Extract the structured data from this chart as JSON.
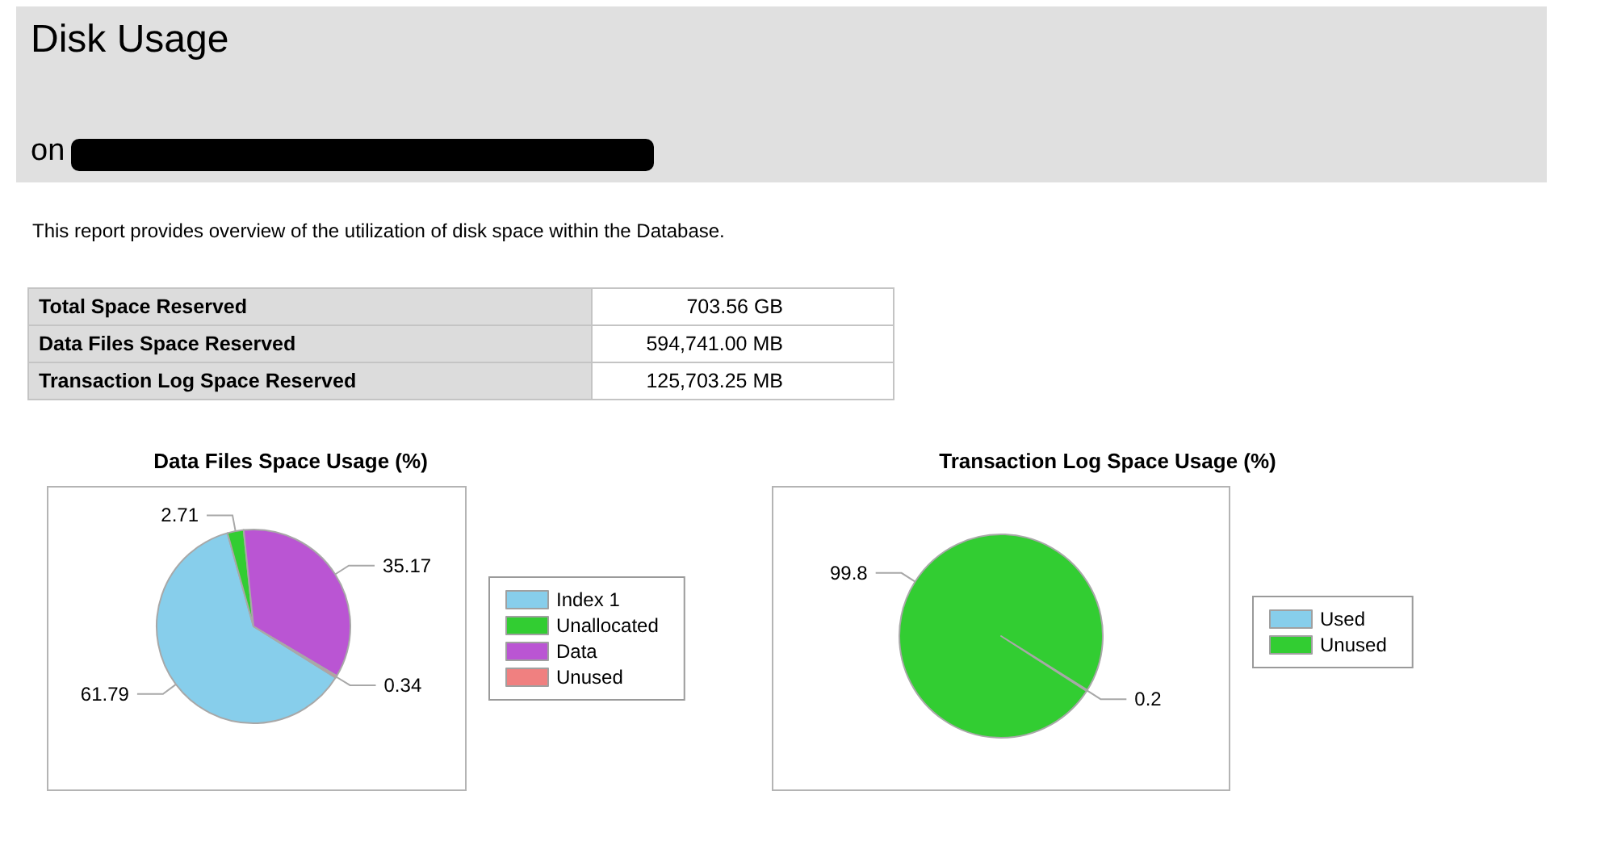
{
  "chart_data": [
    {
      "type": "other",
      "title": "Disk Usage",
      "annotations": [
        "on",
        "This report provides overview of the utilization of disk space within the Database.",
        "Total Space Reserved",
        "703.56 GB",
        "Data Files Space Reserved",
        "594,741.00 MB",
        "Transaction Log Space Reserved",
        "125,703.25 MB"
      ]
    },
    {
      "type": "pie",
      "title": "Data Files Space Usage (%)",
      "categories": [
        "Index 1",
        "Unallocated",
        "Data",
        "Unused"
      ],
      "values": [
        61.79,
        2.71,
        35.17,
        0.34
      ],
      "colors": [
        "#87ceeb",
        "#32cd32",
        "#ba55d3",
        "#f08080"
      ],
      "data_labels": true,
      "legend": "right"
    },
    {
      "type": "pie",
      "title": "Transaction Log Space Usage (%)",
      "categories": [
        "Used",
        "Unused"
      ],
      "values": [
        0.2,
        99.8
      ],
      "colors": [
        "#87ceeb",
        "#32cd32"
      ],
      "data_labels": true,
      "legend": "right"
    }
  ]
}
